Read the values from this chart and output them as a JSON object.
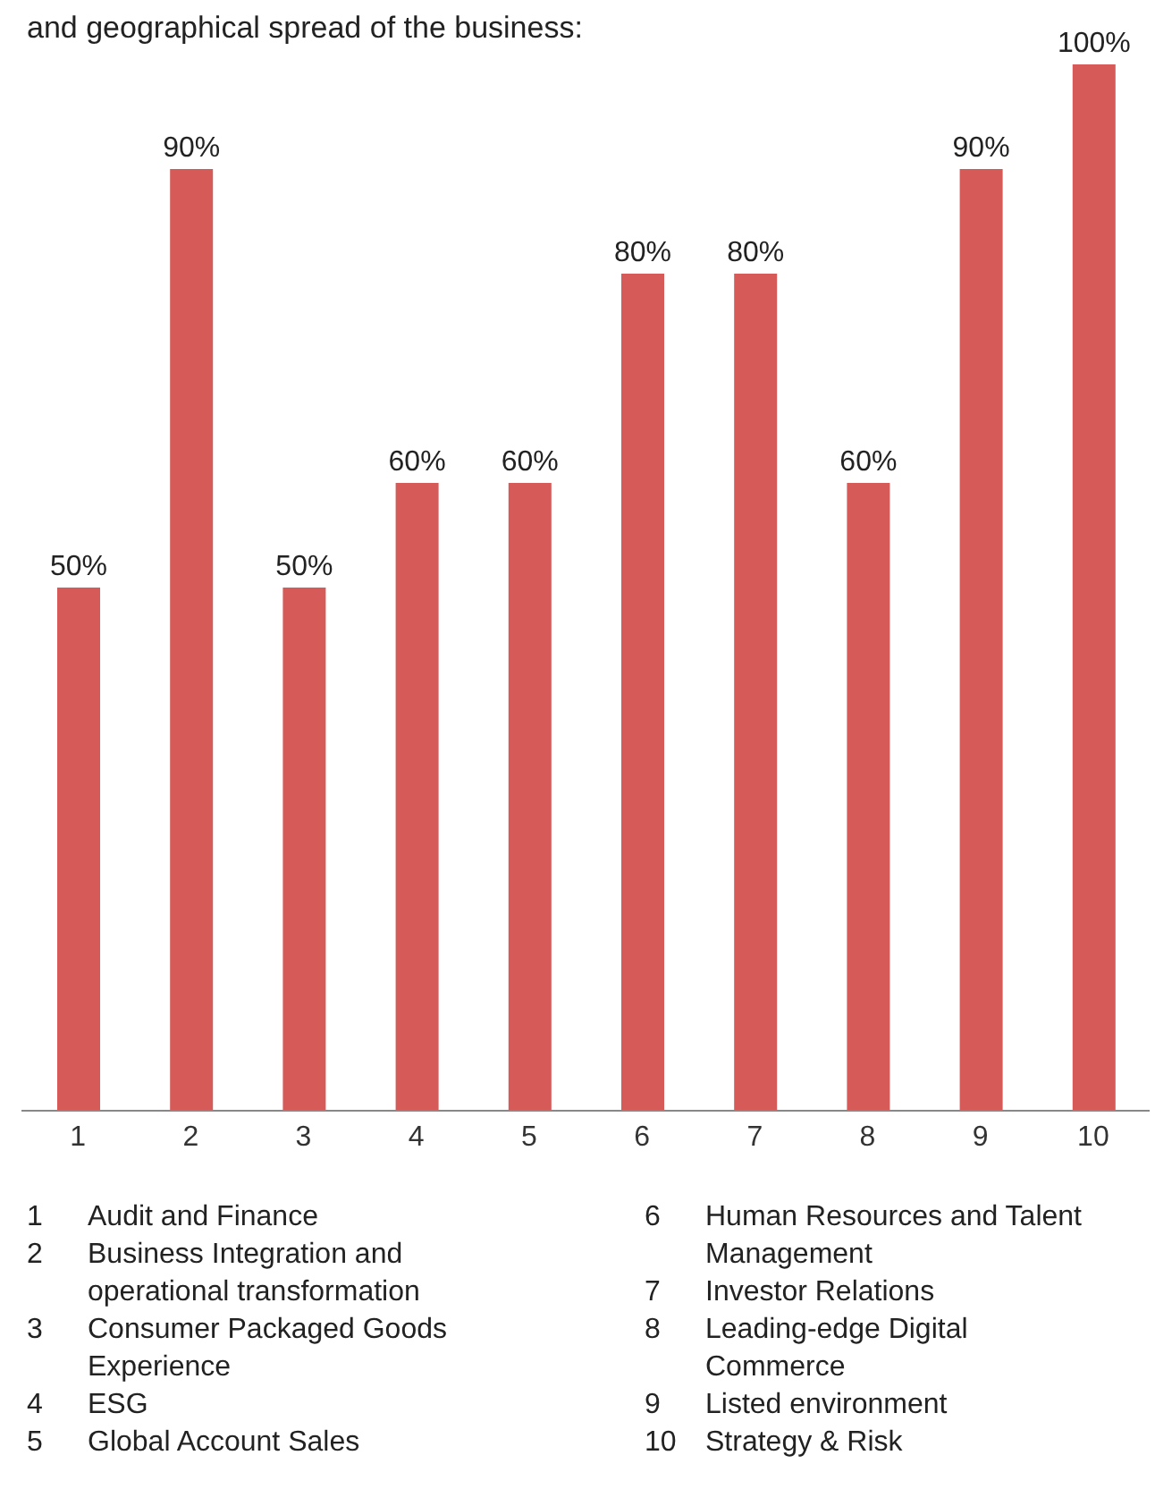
{
  "chart_data": {
    "type": "bar",
    "title": "and geographical spread of the business:",
    "categories": [
      "1",
      "2",
      "3",
      "4",
      "5",
      "6",
      "7",
      "8",
      "9",
      "10"
    ],
    "values": [
      50,
      90,
      50,
      60,
      60,
      80,
      80,
      60,
      90,
      100
    ],
    "value_labels": [
      "50%",
      "90%",
      "50%",
      "60%",
      "60%",
      "80%",
      "80%",
      "60%",
      "90%",
      "100%"
    ],
    "color": "#d65a58",
    "annotations": [
      "Audit and Finance",
      "Business Integration and operational transformation",
      "Consumer Packaged Goods Experience",
      "ESG",
      "Global Account Sales",
      "Human Resources and Talent Management",
      "Investor Relations",
      "Leading-edge Digital Commerce",
      "Listed environment",
      "Strategy & Risk"
    ],
    "legend": false,
    "grid": false
  }
}
